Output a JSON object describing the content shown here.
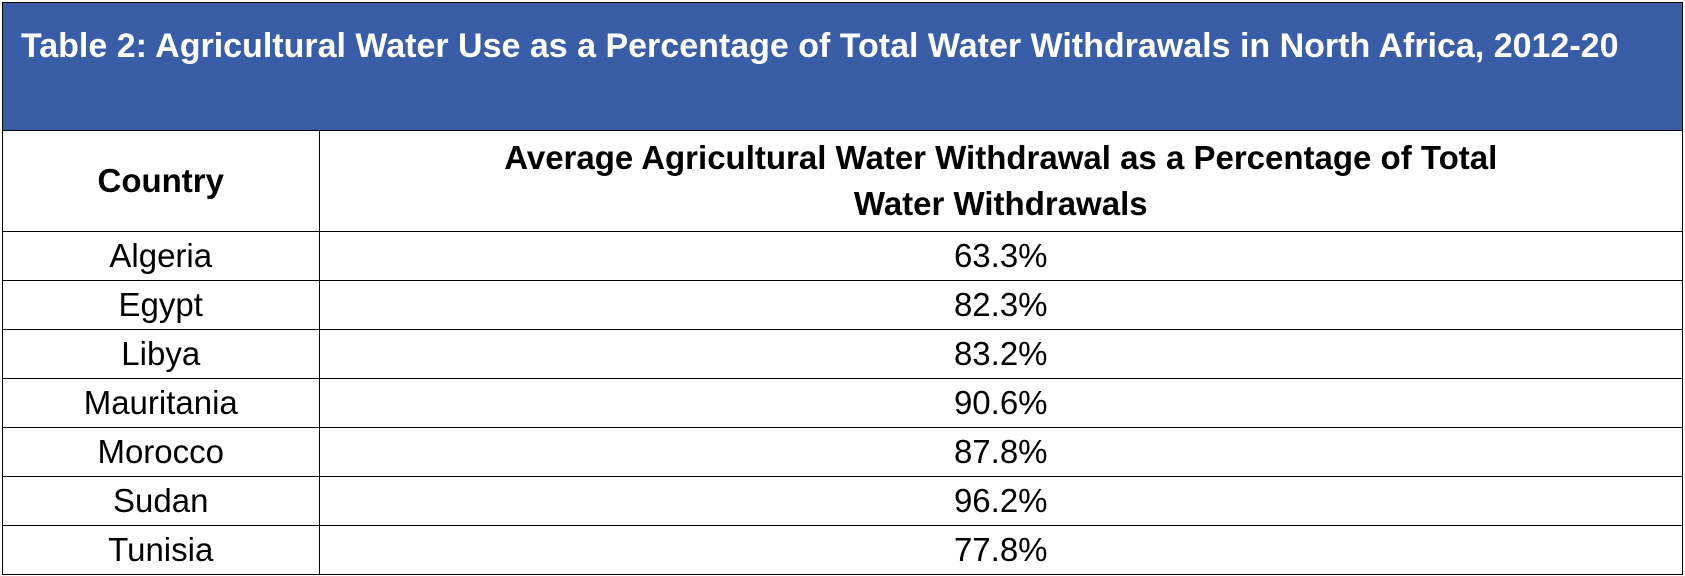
{
  "table": {
    "title": "Table 2: Agricultural Water Use as a Percentage of Total Water Withdrawals in North Africa, 2012-20",
    "columns": [
      "Country",
      "Average Agricultural Water Withdrawal as a Percentage of Total Water Withdrawals"
    ],
    "rows": [
      {
        "country": "Algeria",
        "value": "63.3%"
      },
      {
        "country": "Egypt",
        "value": "82.3%"
      },
      {
        "country": "Libya",
        "value": "83.2%"
      },
      {
        "country": "Mauritania",
        "value": "90.6%"
      },
      {
        "country": "Morocco",
        "value": "87.8%"
      },
      {
        "country": "Sudan",
        "value": "96.2%"
      },
      {
        "country": "Tunisia",
        "value": "77.8%"
      }
    ]
  },
  "colors": {
    "caption_background": "#3a5da8",
    "caption_text": "#ffffff",
    "border": "#000000"
  }
}
